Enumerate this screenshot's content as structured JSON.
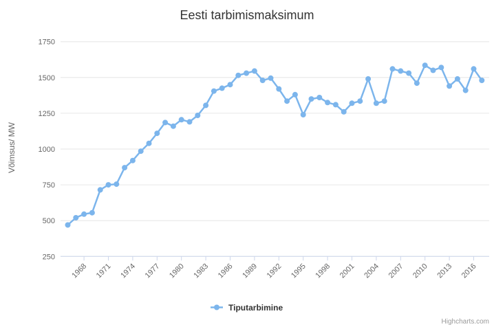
{
  "title": "Eesti tarbimismaksimum",
  "legend": {
    "label": "Tiputarbimine"
  },
  "credits": "Highcharts.com",
  "colors": {
    "series": "#7cb5ec",
    "grid": "#e6e6e6",
    "axis_line": "#ccd6eb",
    "axis_label": "#666666",
    "title": "#333333",
    "legend_text": "#333333",
    "credits": "#999999",
    "background": "#ffffff"
  },
  "chart_data": {
    "type": "line",
    "title": "Eesti tarbimismaksimum",
    "series_name": "Tiputarbimine",
    "xlabel": "",
    "ylabel": "Võimsus/ MW",
    "ylim": [
      250,
      1750
    ],
    "grid": true,
    "legend_position": "bottom",
    "yticks": [
      250,
      500,
      750,
      1000,
      1250,
      1500,
      1750
    ],
    "xticks": [
      1968,
      1971,
      1974,
      1977,
      1980,
      1983,
      1986,
      1989,
      1992,
      1995,
      1998,
      2001,
      2004,
      2007,
      2010,
      2013,
      2016
    ],
    "x": [
      1966,
      1967,
      1968,
      1969,
      1970,
      1971,
      1972,
      1973,
      1974,
      1975,
      1976,
      1977,
      1978,
      1979,
      1980,
      1981,
      1982,
      1983,
      1984,
      1985,
      1986,
      1987,
      1988,
      1989,
      1990,
      1991,
      1992,
      1993,
      1994,
      1995,
      1996,
      1997,
      1998,
      1999,
      2000,
      2001,
      2002,
      2003,
      2004,
      2005,
      2006,
      2007,
      2008,
      2009,
      2010,
      2011,
      2012,
      2013,
      2014,
      2015,
      2016,
      2017
    ],
    "values": [
      470,
      520,
      545,
      555,
      715,
      750,
      755,
      870,
      920,
      985,
      1040,
      1110,
      1185,
      1160,
      1205,
      1190,
      1235,
      1305,
      1405,
      1425,
      1450,
      1515,
      1530,
      1545,
      1480,
      1495,
      1420,
      1335,
      1380,
      1240,
      1350,
      1360,
      1325,
      1310,
      1260,
      1320,
      1335,
      1490,
      1320,
      1335,
      1560,
      1545,
      1530,
      1460,
      1585,
      1550,
      1570,
      1440,
      1490,
      1410,
      1560,
      1480
    ]
  }
}
